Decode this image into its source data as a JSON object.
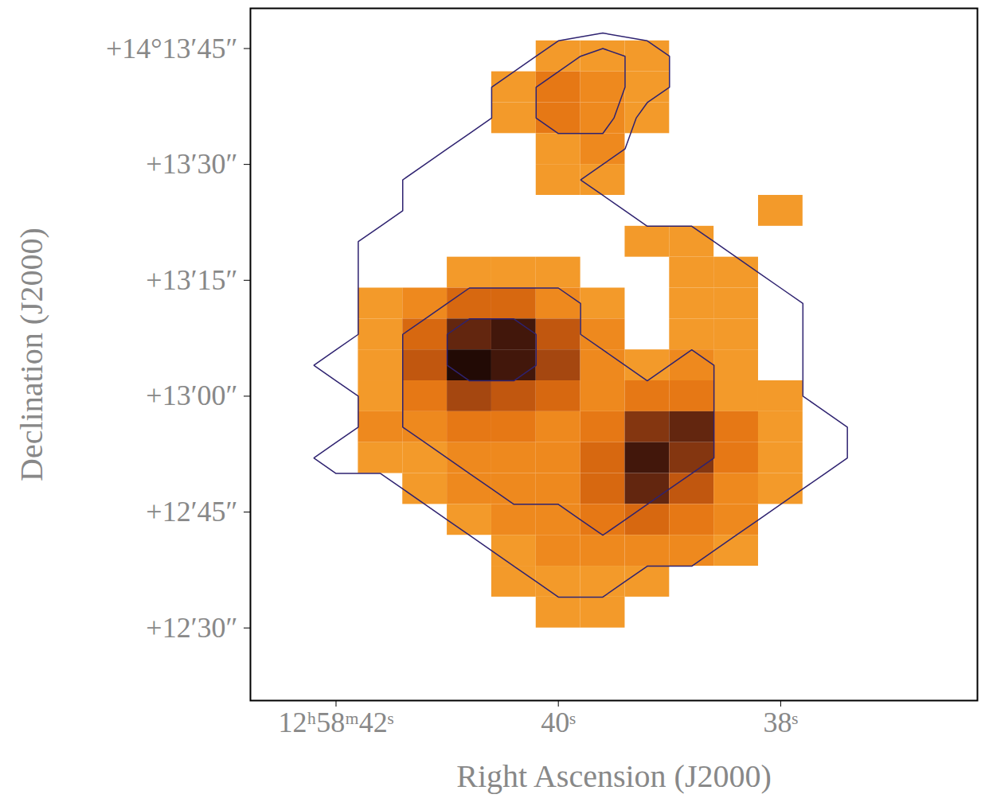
{
  "chart_data": {
    "type": "heatmap",
    "xlabel": "Right Ascension (J2000)",
    "ylabel": "Declination (J2000)",
    "xlim": [
      42.77,
      36.23
    ],
    "ylim": [
      20.6,
      110.2
    ],
    "xticks": [
      {
        "value": 42,
        "label": "12ʰ58ᵐ42ˢ"
      },
      {
        "value": 40,
        "label": "40ˢ"
      },
      {
        "value": 38,
        "label": "38ˢ"
      }
    ],
    "yticks": [
      {
        "value": 105,
        "label": "+14°13′45″"
      },
      {
        "value": 90,
        "label": "+13′30″"
      },
      {
        "value": 75,
        "label": "+13′15″"
      },
      {
        "value": 60,
        "label": "+13′00″"
      },
      {
        "value": 45,
        "label": "+12′45″"
      },
      {
        "value": 30,
        "label": "+12′30″"
      }
    ],
    "grid": false,
    "colors": [
      "#f39a2a",
      "#e9730f",
      "#b9500f",
      "#6a2812",
      "#220a05"
    ],
    "ra": [
      42.4,
      42.0,
      41.6,
      41.2,
      40.8,
      40.4,
      40.0,
      39.6,
      39.2,
      38.8,
      38.4,
      38.0,
      37.6,
      37.2,
      36.8,
      36.4
    ],
    "dec": [
      108,
      104,
      100,
      96,
      92,
      88,
      84,
      80,
      76,
      72,
      68,
      64,
      60,
      56,
      52,
      48,
      44,
      40,
      36,
      32,
      28,
      24
    ],
    "image": [
      [
        null,
        null,
        null,
        null,
        null,
        null,
        null,
        null,
        null,
        null,
        null,
        null,
        null,
        null,
        null,
        null
      ],
      [
        null,
        null,
        null,
        null,
        null,
        null,
        1,
        1,
        1,
        null,
        null,
        null,
        null,
        null,
        null,
        null
      ],
      [
        null,
        null,
        null,
        null,
        null,
        1,
        3,
        2,
        1,
        null,
        null,
        null,
        null,
        null,
        null,
        null
      ],
      [
        null,
        null,
        null,
        null,
        null,
        1,
        3,
        2,
        1,
        null,
        null,
        null,
        null,
        null,
        null,
        null
      ],
      [
        null,
        null,
        null,
        null,
        null,
        null,
        1,
        2,
        null,
        null,
        null,
        null,
        null,
        null,
        null,
        null
      ],
      [
        null,
        null,
        null,
        null,
        null,
        null,
        1,
        1,
        null,
        null,
        null,
        null,
        null,
        null,
        null,
        null
      ],
      [
        null,
        null,
        null,
        null,
        null,
        null,
        null,
        null,
        null,
        null,
        null,
        1,
        null,
        null,
        null,
        null
      ],
      [
        null,
        null,
        null,
        null,
        null,
        null,
        null,
        null,
        1,
        1,
        null,
        null,
        null,
        null,
        null,
        null
      ],
      [
        null,
        null,
        null,
        null,
        1,
        1,
        1,
        null,
        null,
        1,
        1,
        null,
        null,
        null,
        null,
        null
      ],
      [
        null,
        null,
        1,
        2,
        4,
        4,
        2,
        1,
        null,
        1,
        1,
        null,
        null,
        null,
        null,
        null
      ],
      [
        null,
        null,
        1,
        4,
        8,
        9,
        5,
        2,
        null,
        1,
        1,
        null,
        null,
        null,
        null,
        null
      ],
      [
        null,
        null,
        1,
        5,
        10,
        9,
        6,
        2,
        1,
        2,
        1,
        null,
        null,
        null,
        null,
        null
      ],
      [
        null,
        null,
        1,
        3,
        6,
        5,
        4,
        2,
        3,
        3,
        1,
        1,
        null,
        null,
        null,
        null
      ],
      [
        null,
        null,
        2,
        2,
        3,
        3,
        2,
        3,
        7,
        8,
        3,
        1,
        null,
        null,
        null,
        null
      ],
      [
        null,
        null,
        1,
        1,
        2,
        2,
        2,
        4,
        9,
        7,
        3,
        1,
        null,
        null,
        null,
        null
      ],
      [
        null,
        null,
        null,
        1,
        2,
        2,
        2,
        4,
        8,
        5,
        2,
        1,
        null,
        null,
        null,
        null
      ],
      [
        null,
        null,
        null,
        null,
        1,
        2,
        2,
        3,
        4,
        3,
        2,
        null,
        null,
        null,
        null,
        null
      ],
      [
        null,
        null,
        null,
        null,
        null,
        1,
        2,
        2,
        2,
        2,
        1,
        null,
        null,
        null,
        null,
        null
      ],
      [
        null,
        null,
        null,
        null,
        null,
        1,
        1,
        1,
        1,
        null,
        null,
        null,
        null,
        null,
        null,
        null
      ],
      [
        null,
        null,
        null,
        null,
        null,
        null,
        1,
        1,
        null,
        null,
        null,
        null,
        null,
        null,
        null,
        null
      ],
      [
        null,
        null,
        null,
        null,
        null,
        null,
        null,
        null,
        null,
        null,
        null,
        null,
        null,
        null,
        null,
        null
      ],
      [
        null,
        null,
        null,
        null,
        null,
        null,
        null,
        null,
        null,
        null,
        null,
        null,
        null,
        null,
        null,
        null
      ]
    ],
    "contours": {
      "color": "#2e2270",
      "thresholds": [
        0.5,
        1.5,
        2.5
      ],
      "values": [
        [
          0,
          0,
          0,
          0,
          0,
          0,
          0,
          0,
          0,
          0,
          0,
          0,
          0,
          0,
          0,
          0
        ],
        [
          0,
          0,
          0,
          0,
          0,
          0,
          1,
          2,
          1,
          0,
          0,
          0,
          0,
          0,
          0,
          0
        ],
        [
          0,
          0,
          0,
          0,
          0,
          1,
          2,
          2,
          1,
          0,
          0,
          0,
          0,
          0,
          0,
          0
        ],
        [
          0,
          0,
          0,
          0,
          0,
          1,
          2,
          2,
          0,
          0,
          0,
          0,
          0,
          0,
          0,
          0
        ],
        [
          0,
          0,
          0,
          0,
          1,
          1,
          1,
          1,
          0,
          0,
          0,
          0,
          0,
          0,
          0,
          0
        ],
        [
          0,
          0,
          0,
          1,
          1,
          1,
          1,
          0,
          0,
          0,
          0,
          0,
          0,
          0,
          0,
          0
        ],
        [
          0,
          0,
          0,
          1,
          1,
          1,
          1,
          1,
          0,
          0,
          0,
          0,
          0,
          0,
          0,
          0
        ],
        [
          0,
          0,
          1,
          1,
          1,
          1,
          1,
          1,
          1,
          1,
          0,
          0,
          0,
          0,
          0,
          0
        ],
        [
          0,
          0,
          1,
          1,
          1,
          1,
          1,
          1,
          1,
          1,
          1,
          0,
          0,
          0,
          0,
          0
        ],
        [
          0,
          0,
          1,
          1,
          2,
          2,
          2,
          1,
          1,
          1,
          1,
          1,
          0,
          0,
          0,
          0
        ],
        [
          0,
          0,
          1,
          2,
          3,
          3,
          2,
          1,
          1,
          1,
          1,
          1,
          0,
          0,
          0,
          0
        ],
        [
          0,
          1,
          1,
          2,
          3,
          3,
          2,
          2,
          1,
          2,
          1,
          1,
          0,
          0,
          0,
          0
        ],
        [
          0,
          0,
          1,
          2,
          2,
          2,
          2,
          2,
          2,
          2,
          1,
          1,
          0,
          0,
          0,
          0
        ],
        [
          0,
          0,
          1,
          2,
          2,
          2,
          2,
          2,
          2,
          2,
          1,
          1,
          1,
          0,
          0,
          0
        ],
        [
          0,
          1,
          1,
          1,
          2,
          2,
          2,
          2,
          2,
          2,
          1,
          1,
          1,
          0,
          0,
          0
        ],
        [
          0,
          0,
          0,
          1,
          1,
          2,
          2,
          2,
          2,
          1,
          1,
          1,
          0,
          0,
          0,
          0
        ],
        [
          0,
          0,
          0,
          0,
          1,
          1,
          1,
          2,
          1,
          1,
          1,
          0,
          0,
          0,
          0,
          0
        ],
        [
          0,
          0,
          0,
          0,
          0,
          1,
          1,
          1,
          1,
          1,
          0,
          0,
          0,
          0,
          0,
          0
        ],
        [
          0,
          0,
          0,
          0,
          0,
          0,
          1,
          1,
          0,
          0,
          0,
          0,
          0,
          0,
          0,
          0
        ],
        [
          0,
          0,
          0,
          0,
          0,
          0,
          0,
          0,
          0,
          0,
          0,
          0,
          0,
          0,
          0,
          0
        ],
        [
          0,
          0,
          0,
          0,
          0,
          0,
          0,
          0,
          0,
          0,
          0,
          0,
          0,
          0,
          0,
          0
        ],
        [
          0,
          0,
          0,
          0,
          0,
          0,
          0,
          0,
          0,
          0,
          0,
          0,
          0,
          0,
          0,
          0
        ]
      ]
    }
  }
}
